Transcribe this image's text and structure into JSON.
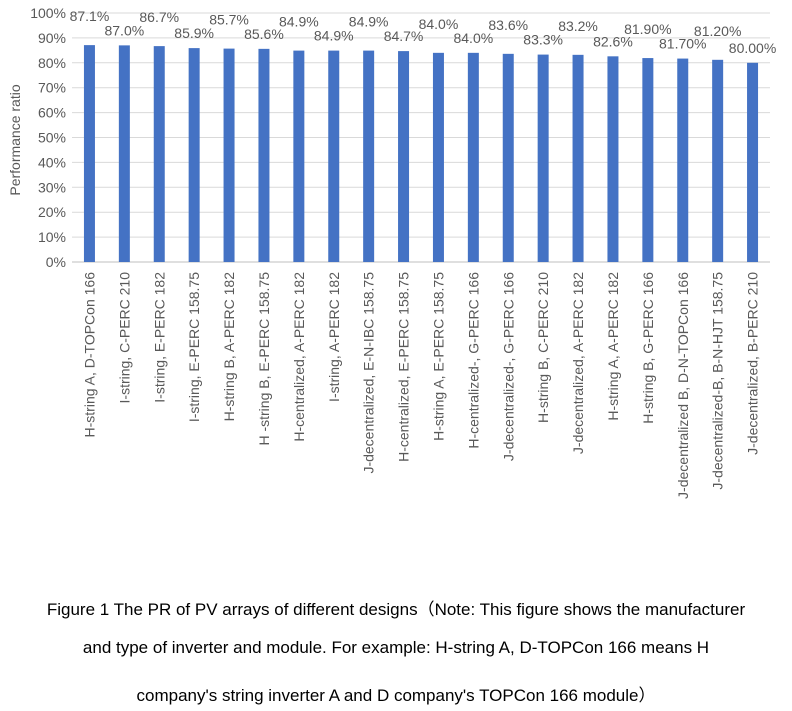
{
  "chart_data": {
    "type": "bar",
    "title": "",
    "xlabel": "",
    "ylabel": "Performance ratio",
    "ylim": [
      0,
      100
    ],
    "y_ticks": [
      "0%",
      "10%",
      "20%",
      "30%",
      "40%",
      "50%",
      "60%",
      "70%",
      "80%",
      "90%",
      "100%"
    ],
    "grid": true,
    "bar_color": "#4472C4",
    "categories": [
      "H-string A, D-TOPCon 166",
      "I-string, C-PERC 210",
      "I-string, E-PERC 182",
      "I-string, E-PERC 158.75",
      "H-string B,  A-PERC 182",
      "H -string B, E-PERC 158.75",
      "H-centralized, A-PERC 182",
      "I-string, A-PERC 182",
      "J-decentralized, E-N-IBC 158.75",
      "H-centralized, E-PERC 158.75",
      "H-string A, E-PERC 158.75",
      "H-centralized-, G-PERC 166",
      "J-decentralized-, G-PERC 166",
      "H-string B, C-PERC 210",
      "J-decentralized, A-PERC 182",
      "H-string A, A-PERC 182",
      "H-string B, G-PERC 166",
      "J-decentralized B, D-N-TOPCon 166",
      "J-decentralized-B, B-N-HJT 158.75",
      "J-decentralized, B-PERC 210"
    ],
    "values": [
      87.1,
      87.0,
      86.7,
      85.9,
      85.7,
      85.6,
      84.9,
      84.9,
      84.9,
      84.7,
      84.0,
      84.0,
      83.6,
      83.3,
      83.2,
      82.6,
      81.9,
      81.7,
      81.2,
      80.0
    ],
    "data_labels": [
      "87.1%",
      "87.0%",
      "86.7%",
      "85.9%",
      "85.7%",
      "85.6%",
      "84.9%",
      "84.9%",
      "84.9%",
      "84.7%",
      "84.0%",
      "84.0%",
      "83.6%",
      "83.3%",
      "83.2%",
      "82.6%",
      "81.90%",
      "81.70%",
      "81.20%",
      "80.00%"
    ]
  },
  "caption": {
    "line1": "Figure 1 The PR of PV arrays of different designs（Note: This figure shows the manufacturer",
    "line2": "and type of inverter and module. For example: H-string A, D-TOPCon 166 means H",
    "line3": "company's string inverter A and D company's TOPCon 166 module）"
  }
}
